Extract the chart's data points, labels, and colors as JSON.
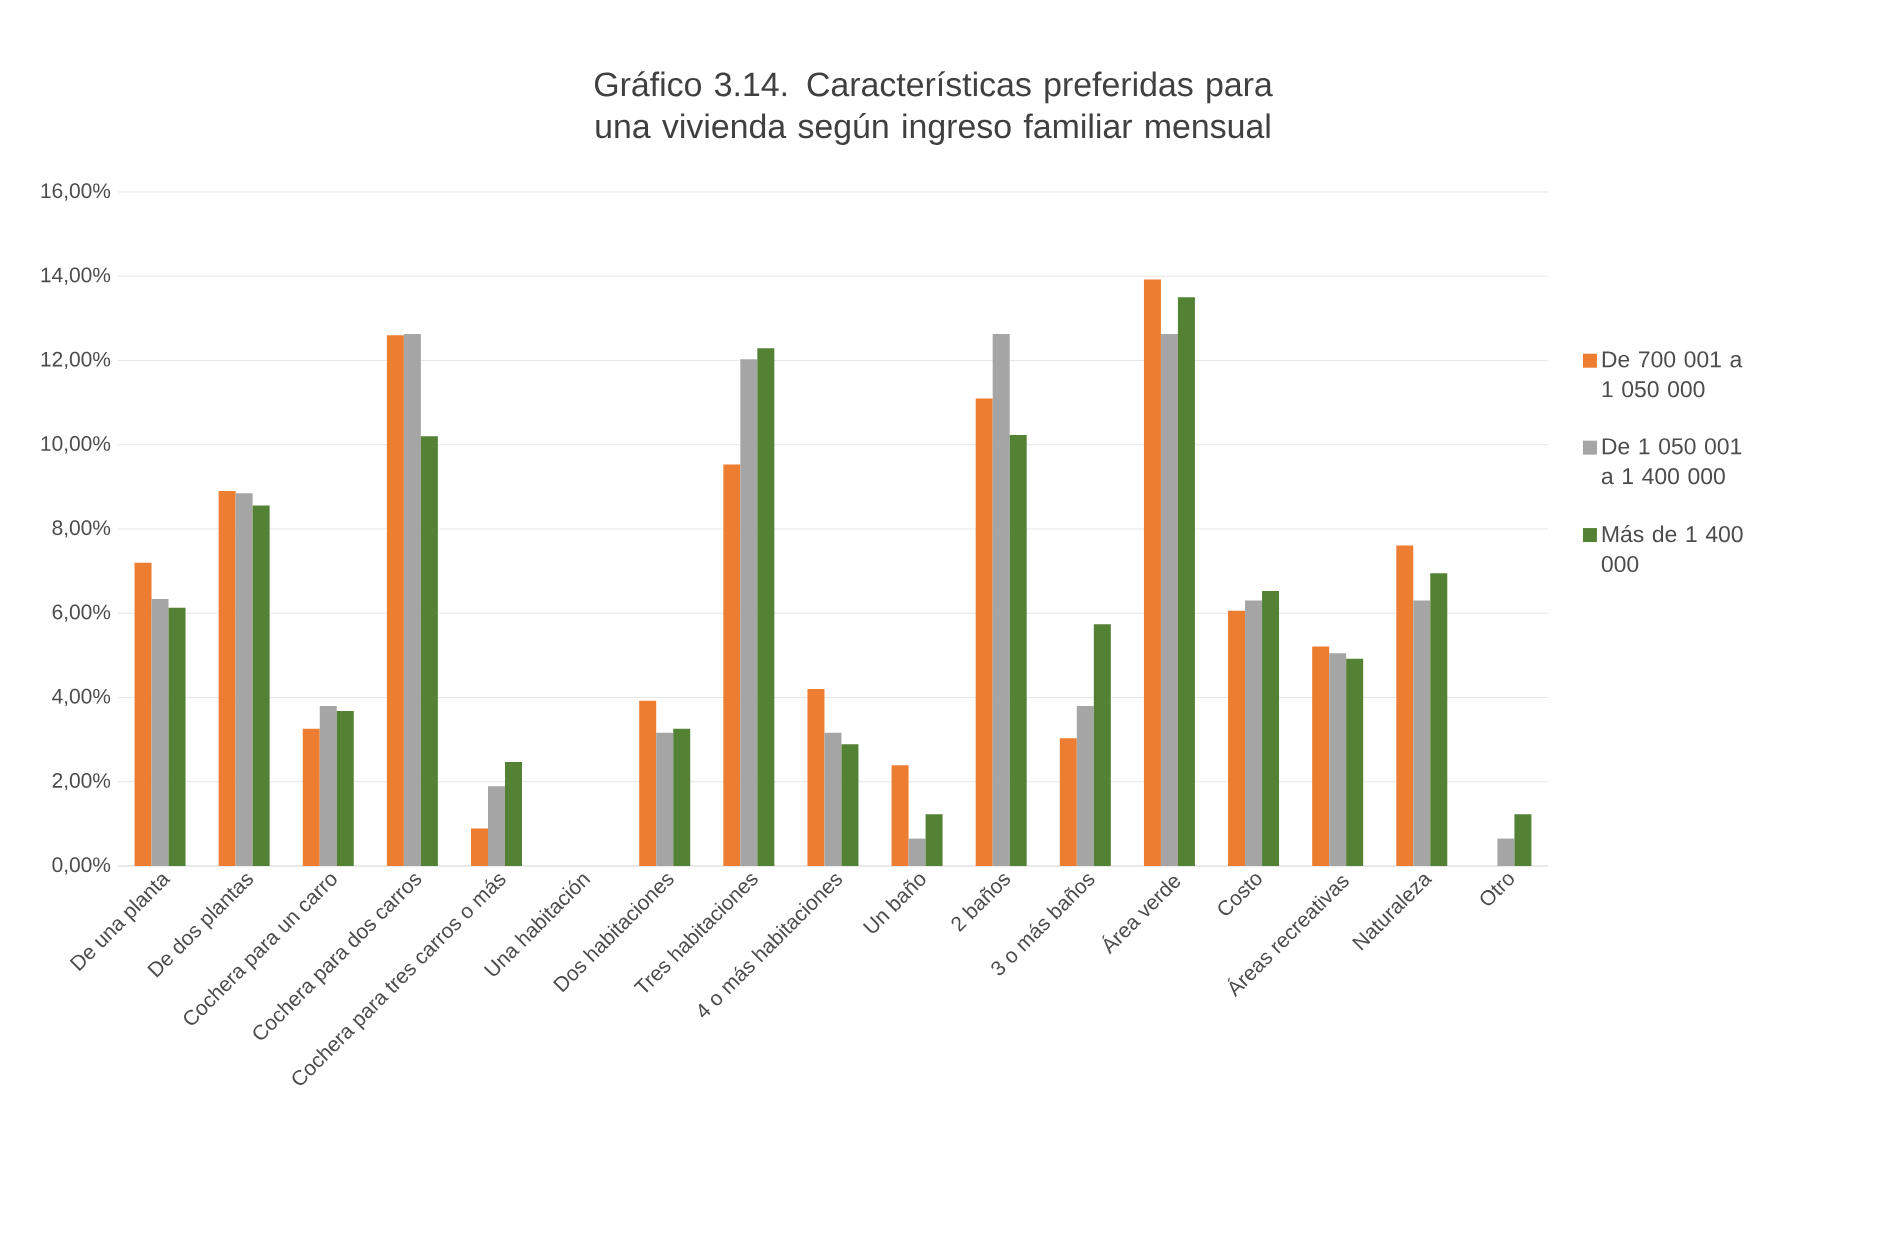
{
  "chart_data": {
    "type": "bar",
    "title": "Gráfico 3.14. Características preferidas para una vivienda según ingreso familiar mensual",
    "categories": [
      "De una planta",
      "De dos plantas",
      "Cochera para un carro",
      "Cochera para dos carros",
      "Cochera para tres carros o más",
      "Una habitación",
      "Dos habitaciones",
      "Tres habitaciones",
      "4 o más habitaciones",
      "Un baño",
      "2 baños",
      "3 o más baños",
      "Área verde",
      "Costo",
      "Áreas recreativas",
      "Naturaleza",
      "Otro"
    ],
    "series": [
      {
        "name": "De 700 001 a 1 050 000",
        "color": "#ed7d31",
        "values": [
          7.2,
          8.9,
          3.26,
          12.6,
          0.89,
          0,
          3.92,
          9.53,
          4.2,
          2.39,
          11.1,
          3.03,
          13.92,
          6.06,
          5.21,
          7.61,
          0
        ]
      },
      {
        "name": "De 1 050 001 a 1 400 000",
        "color": "#a5a5a5",
        "values": [
          6.34,
          8.85,
          3.8,
          12.63,
          1.89,
          0,
          3.16,
          12.03,
          3.16,
          0.65,
          12.63,
          3.8,
          12.63,
          6.3,
          5.05,
          6.3,
          0.65
        ]
      },
      {
        "name": "Más de 1 400 000",
        "color": "#548235",
        "values": [
          6.13,
          8.56,
          3.68,
          10.2,
          2.47,
          0,
          3.26,
          12.29,
          2.89,
          1.23,
          10.23,
          5.74,
          13.5,
          6.53,
          4.92,
          6.95,
          1.23
        ]
      }
    ],
    "ylim": [
      0,
      16
    ],
    "yticks": [
      {
        "value": 0,
        "label": "0,00%"
      },
      {
        "value": 2,
        "label": "2,00%"
      },
      {
        "value": 4,
        "label": "4,00%"
      },
      {
        "value": 6,
        "label": "6,00%"
      },
      {
        "value": 8,
        "label": "8,00%"
      },
      {
        "value": 10,
        "label": "10,00%"
      },
      {
        "value": 12,
        "label": "12,00%"
      },
      {
        "value": 14,
        "label": "14,00%"
      },
      {
        "value": 16,
        "label": "16,00%"
      }
    ],
    "grid": "y",
    "legend": "right"
  }
}
